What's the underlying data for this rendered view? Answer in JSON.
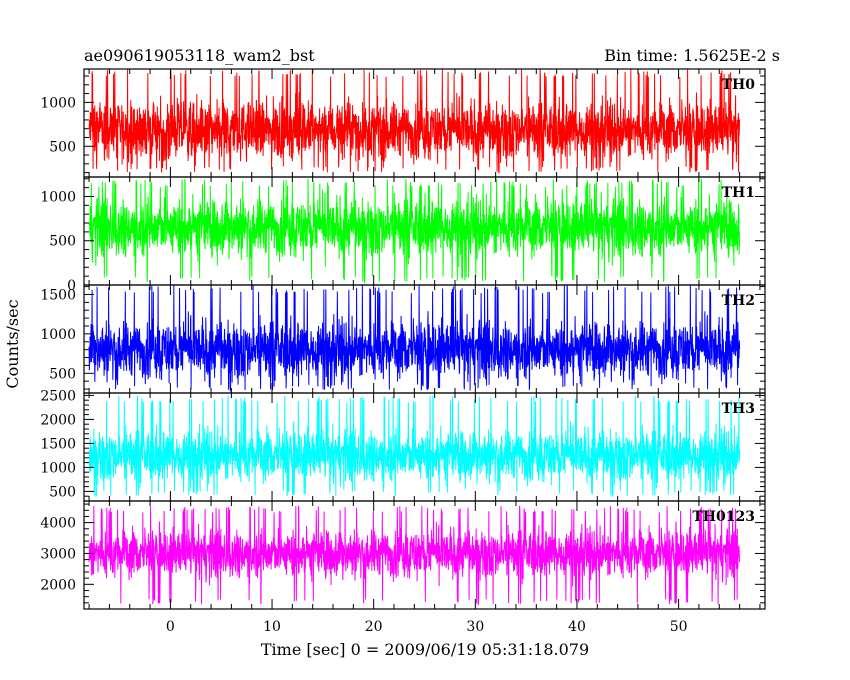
{
  "chart_data": {
    "type": "line",
    "title": "ae090619053118_wam2_bst",
    "subtitle": "Bin time: 1.5625E-2 s",
    "xlabel": "Time [sec] 0 = 2009/06/19 05:31:18.079",
    "ylabel": "Counts/sec",
    "xlim": [
      -8.5,
      58.5
    ],
    "x_ticks": [
      0,
      10,
      20,
      30,
      40,
      50
    ],
    "x_range_data": [
      -8,
      56
    ],
    "grid": false,
    "panels": [
      {
        "label": "TH0",
        "color": "#ff0000",
        "ylim": [
          150,
          1380
        ],
        "y_ticks": [
          500,
          1000
        ],
        "mean": 680,
        "spread": 230,
        "min": 200,
        "max": 1380
      },
      {
        "label": "TH1",
        "color": "#00ff00",
        "ylim": [
          0,
          1220
        ],
        "y_ticks": [
          0,
          500,
          1000
        ],
        "mean": 650,
        "spread": 230,
        "min": 30,
        "max": 1200
      },
      {
        "label": "TH2",
        "color": "#0000ff",
        "ylim": [
          250,
          1620
        ],
        "y_ticks": [
          500,
          1000,
          1500
        ],
        "mean": 800,
        "spread": 260,
        "min": 280,
        "max": 1620
      },
      {
        "label": "TH3",
        "color": "#00ffff",
        "ylim": [
          300,
          2550
        ],
        "y_ticks": [
          500,
          1000,
          1500,
          2000,
          2500
        ],
        "mean": 1250,
        "spread": 380,
        "min": 400,
        "max": 2500
      },
      {
        "label": "TH0123",
        "color": "#ff00ff",
        "ylim": [
          1200,
          4700
        ],
        "y_ticks": [
          2000,
          3000,
          4000
        ],
        "mean": 3000,
        "spread": 550,
        "min": 1350,
        "max": 4550
      }
    ]
  }
}
